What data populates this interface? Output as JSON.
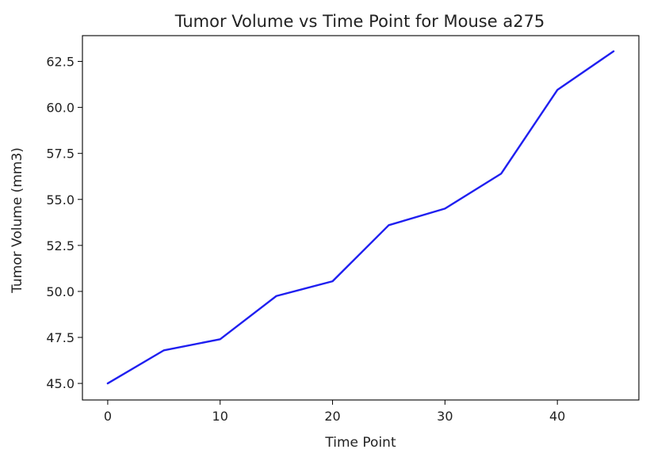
{
  "chart_data": {
    "type": "line",
    "title": "Tumor Volume vs Time Point for Mouse a275",
    "xlabel": "Time Point",
    "ylabel": "Tumor Volume (mm3)",
    "xlim": [
      -2.25,
      47.25
    ],
    "ylim": [
      44.1,
      63.9
    ],
    "x_ticks": [
      0,
      10,
      20,
      30,
      40
    ],
    "x_tick_labels": [
      "0",
      "10",
      "20",
      "30",
      "40"
    ],
    "y_ticks": [
      45.0,
      47.5,
      50.0,
      52.5,
      55.0,
      57.5,
      60.0,
      62.5
    ],
    "y_tick_labels": [
      "45.0",
      "47.5",
      "50.0",
      "52.5",
      "55.0",
      "57.5",
      "60.0",
      "62.5"
    ],
    "grid": false,
    "series": [
      {
        "x": [
          0,
          5,
          10,
          15,
          20,
          25,
          30,
          35,
          40,
          45
        ],
        "values": [
          45.0,
          46.8,
          47.4,
          49.75,
          50.55,
          53.6,
          54.5,
          56.4,
          60.95,
          63.05
        ],
        "color": "#1f1ff0"
      }
    ]
  }
}
